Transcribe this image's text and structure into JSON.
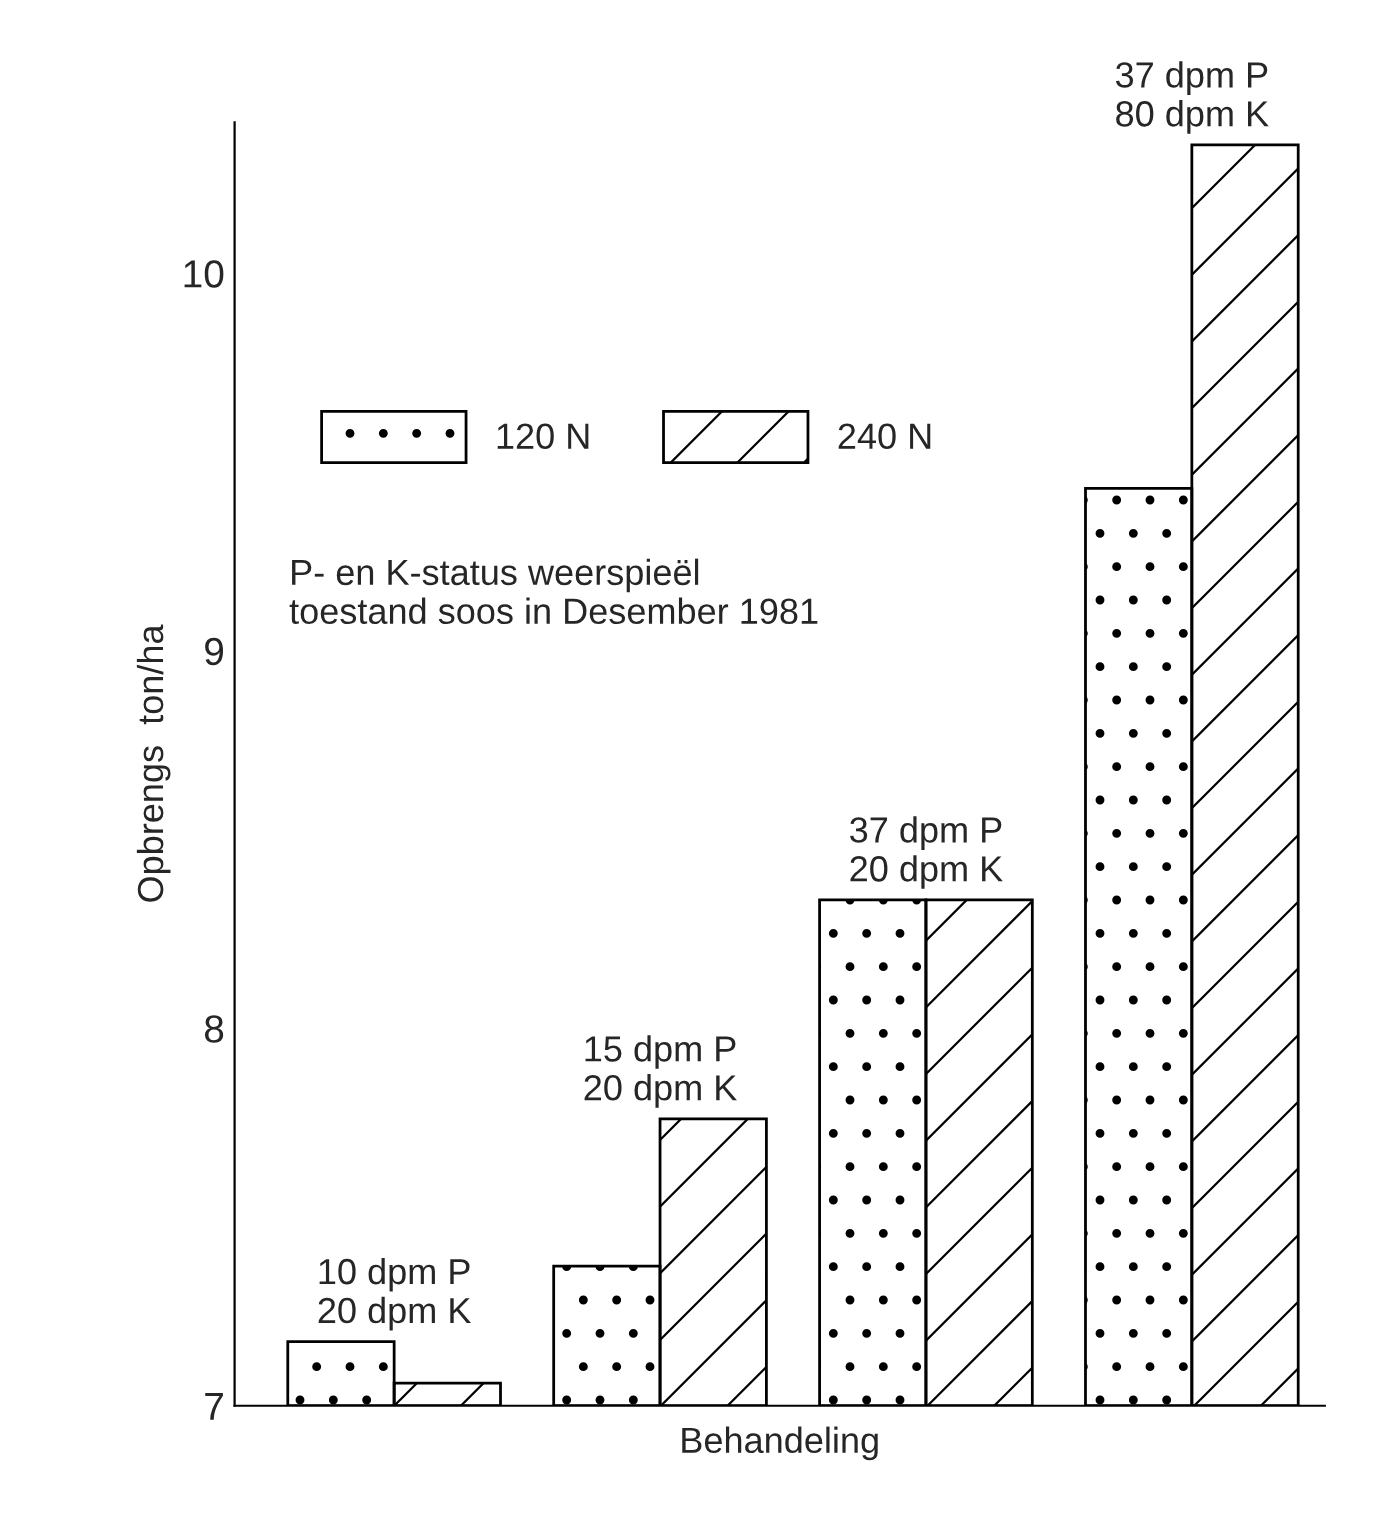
{
  "chart_data": {
    "type": "bar",
    "xlabel": "Behandeling",
    "ylabel": "Opbrengs  ton/ha",
    "categories": [
      null,
      null,
      null,
      null
    ],
    "series": [
      {
        "name": "120 N",
        "color": "#000000",
        "values": [
          7.17,
          7.37,
          8.34,
          9.43
        ]
      },
      {
        "name": "240 N",
        "color": "#000000",
        "values": [
          7.06,
          7.76,
          8.34,
          10.34
        ]
      }
    ],
    "ylim": [
      7,
      10.4
    ],
    "yticks": [
      7,
      8,
      9,
      10
    ],
    "grid": false,
    "legend": "top left",
    "annotations": [
      "10 dpm P\n20 dpm K",
      "15 dpm P\n20 dpm K",
      "37 dpm P\n20 dpm K",
      "37 dpm P\n80 dpm K",
      "P- en K-status weerspieël\ntoestand soos in Desember 1981"
    ]
  }
}
